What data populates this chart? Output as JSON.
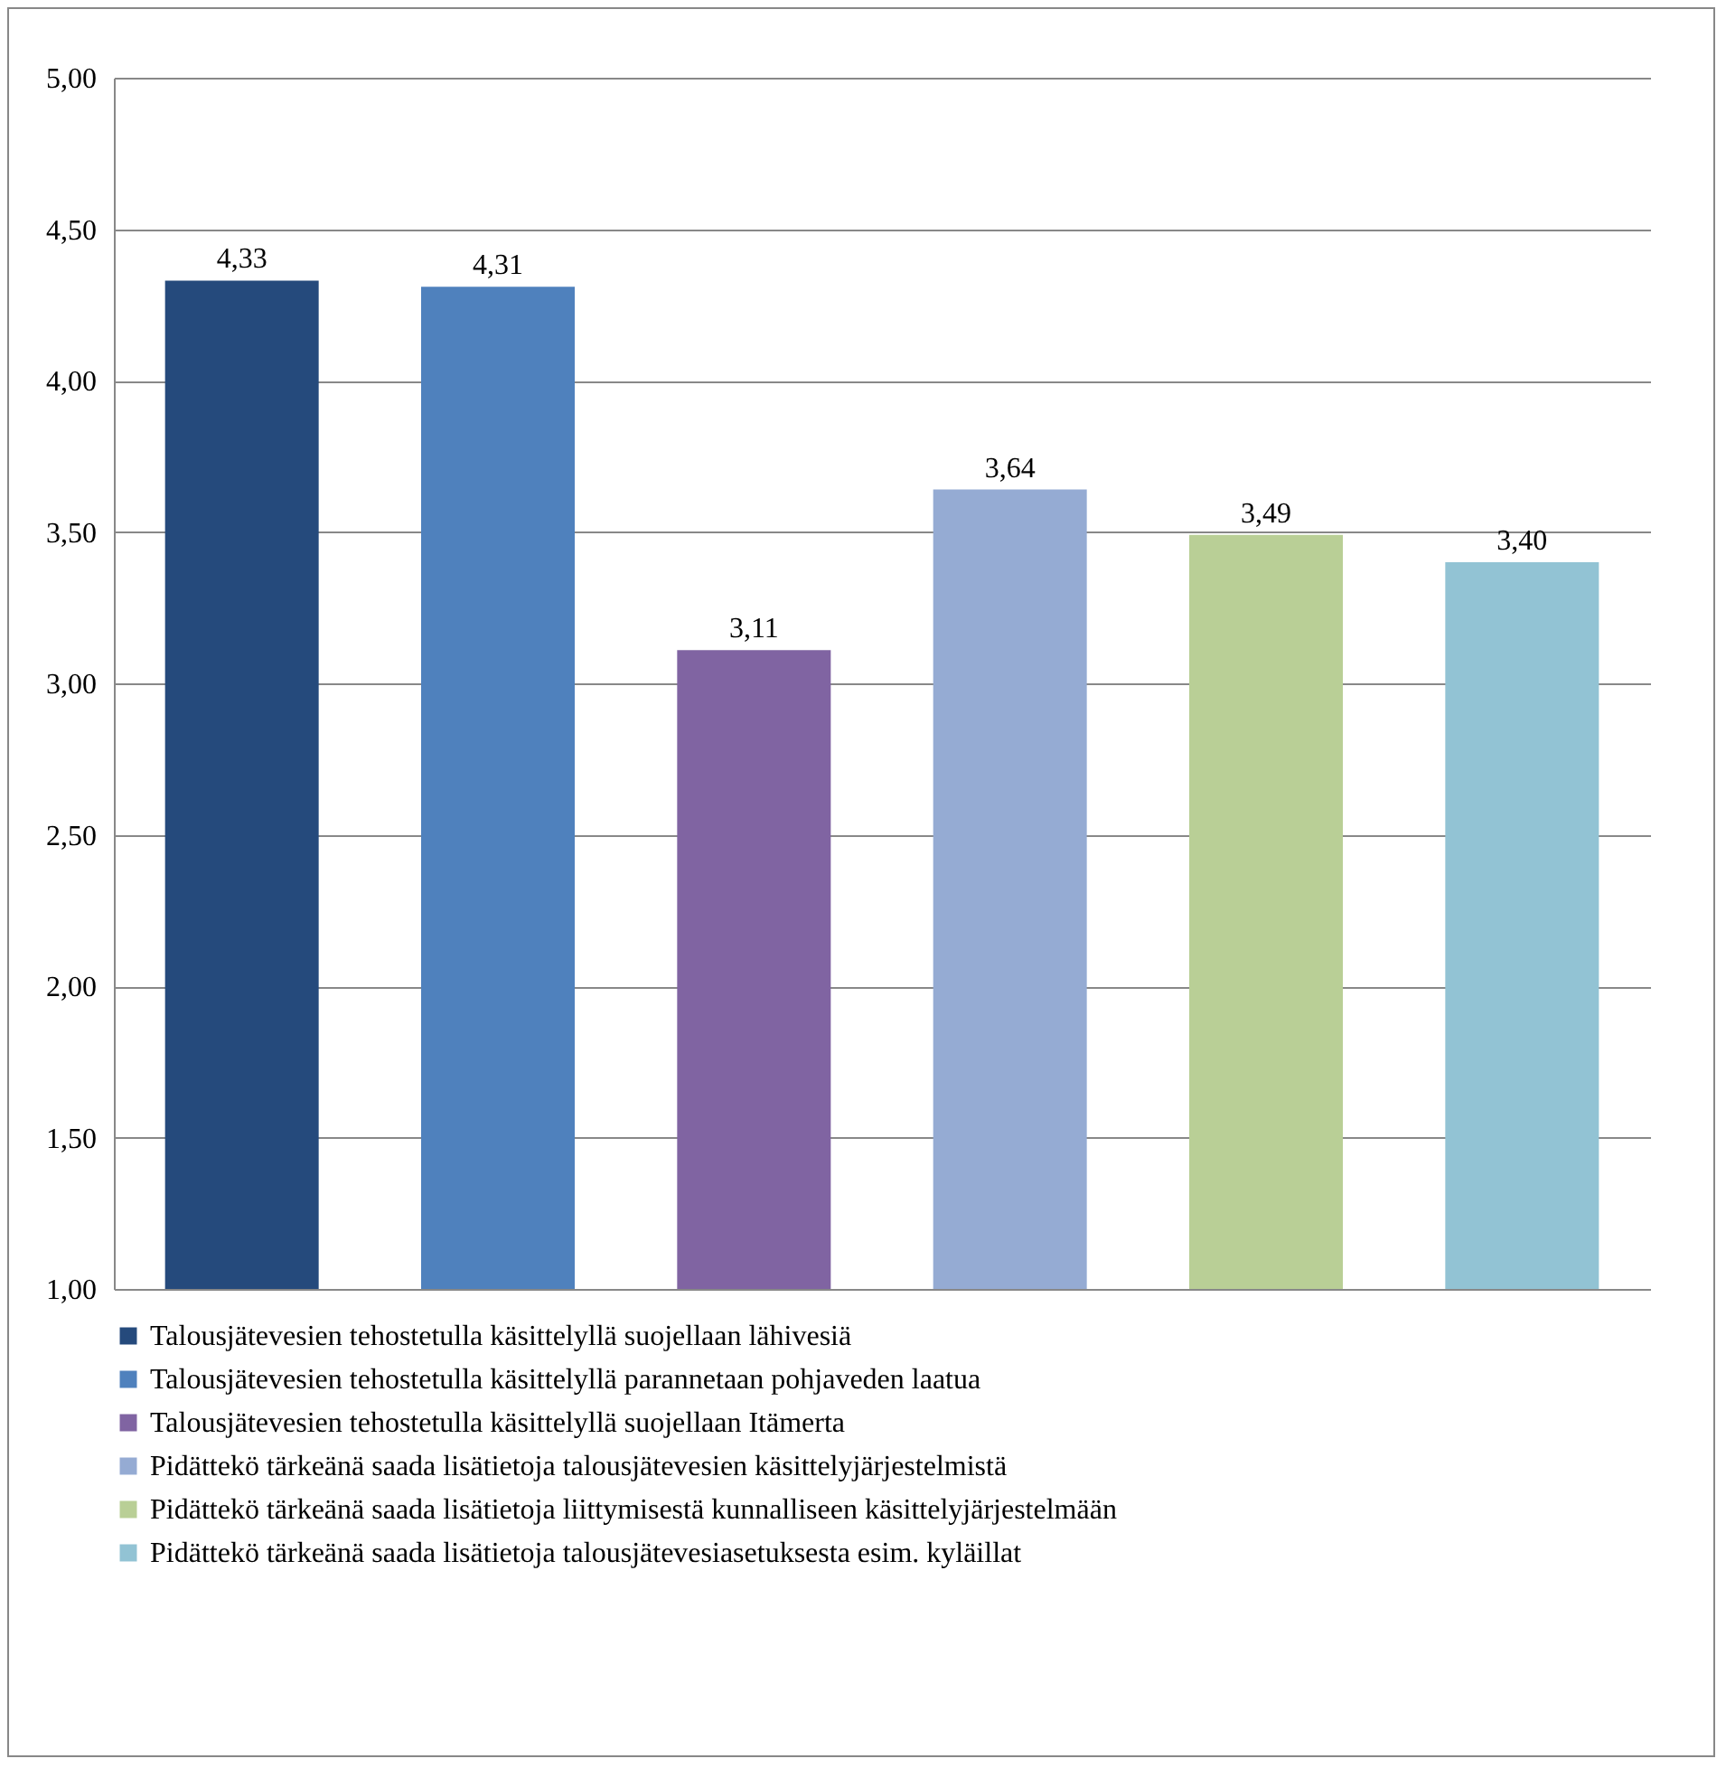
{
  "chart_data": {
    "type": "bar",
    "categories": [
      null,
      null,
      null,
      null,
      null,
      null
    ],
    "series": [
      {
        "name": "Talousjätevesien tehostetulla käsittelyllä suojellaan lähivesiä",
        "color": "#254a7c",
        "values": [
          4.33,
          null,
          null,
          null,
          null,
          null
        ],
        "value_labels": [
          "4,33",
          null,
          null,
          null,
          null,
          null
        ]
      },
      {
        "name": "Talousjätevesien tehostetulla käsittelyllä parannetaan pohjaveden laatua",
        "color": "#4f81bd",
        "values": [
          null,
          4.31,
          null,
          null,
          null,
          null
        ],
        "value_labels": [
          null,
          "4,31",
          null,
          null,
          null,
          null
        ]
      },
      {
        "name": "Talousjätevesien tehostetulla käsittelyllä suojellaan Itämerta",
        "color": "#8064a2",
        "values": [
          null,
          null,
          3.11,
          null,
          null,
          null
        ],
        "value_labels": [
          null,
          null,
          "3,11",
          null,
          null,
          null
        ]
      },
      {
        "name": "Pidättekö tärkeänä saada lisätietoja talousjätevesien käsittelyjärjestelmistä",
        "color": "#95abd3",
        "values": [
          null,
          null,
          null,
          3.64,
          null,
          null
        ],
        "value_labels": [
          null,
          null,
          null,
          "3,64",
          null,
          null
        ]
      },
      {
        "name": "Pidättekö tärkeänä saada lisätietoja liittymisestä kunnalliseen käsittelyjärjestelmään",
        "color": "#b9cf96",
        "values": [
          null,
          null,
          null,
          null,
          3.49,
          null
        ],
        "value_labels": [
          null,
          null,
          null,
          null,
          "3,49",
          null
        ]
      },
      {
        "name": "Pidättekö tärkeänä saada lisätietoja talousjätevesiasetuksesta esim. kyläillat",
        "color": "#92c3d4",
        "values": [
          null,
          null,
          null,
          null,
          null,
          3.4
        ],
        "value_labels": [
          null,
          null,
          null,
          null,
          null,
          "3,40"
        ]
      }
    ],
    "ylim": [
      1,
      5
    ],
    "yticks": [
      {
        "value": 1,
        "label": "1,00"
      },
      {
        "value": 1.5,
        "label": "1,50"
      },
      {
        "value": 2,
        "label": "2,00"
      },
      {
        "value": 2.5,
        "label": "2,50"
      },
      {
        "value": 3,
        "label": "3,00"
      },
      {
        "value": 3.5,
        "label": "3,50"
      },
      {
        "value": 4,
        "label": "4,00"
      },
      {
        "value": 4.5,
        "label": "4,50"
      },
      {
        "value": 5,
        "label": "5,00"
      }
    ],
    "grid": "y",
    "legend": "bottom",
    "tick_labels": "y"
  }
}
